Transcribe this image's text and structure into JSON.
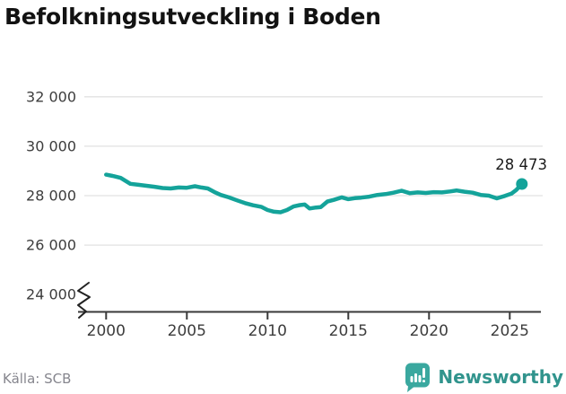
{
  "header": {
    "title": "Befolkningsutveckling i Boden"
  },
  "footer": {
    "source": "Källa: SCB",
    "brand": "Newsworthy"
  },
  "colors": {
    "line": "#14a39a",
    "logo_bubble": "#3aa89f",
    "logo_glyph": "#ffffff",
    "brand_text": "#31948d",
    "grid": "#e2e2e2",
    "axis": "#3a3a3a",
    "tick_label": "#3d3d3d",
    "title_text": "#121212",
    "end_label": "#1b1b1b",
    "source_text": "#86868e"
  },
  "chart_data": {
    "type": "line",
    "title": "Befolkningsutveckling i Boden",
    "xlabel": "",
    "ylabel": "",
    "grid": true,
    "legend_position": "none",
    "xlim": [
      1999.6,
      2027
    ],
    "ylim": [
      23600,
      32400
    ],
    "axis_break_at_bottom": true,
    "x_ticks": [
      2000,
      2005,
      2010,
      2015,
      2020,
      2025
    ],
    "y_ticks": [
      {
        "value": 32000,
        "label": "32 000",
        "gridline": true
      },
      {
        "value": 30000,
        "label": "30 000",
        "gridline": true
      },
      {
        "value": 28000,
        "label": "28 000",
        "gridline": true
      },
      {
        "value": 26000,
        "label": "26 000",
        "gridline": true
      },
      {
        "value": 24000,
        "label": "24 000",
        "gridline": false
      }
    ],
    "end_label": "28 473",
    "end_point": [
      2025.75,
      28473
    ],
    "series": [
      {
        "color": "#14a39a",
        "points": [
          [
            2000.0,
            28850
          ],
          [
            2000.4,
            28800
          ],
          [
            2000.9,
            28720
          ],
          [
            2001.5,
            28480
          ],
          [
            2002.0,
            28440
          ],
          [
            2002.5,
            28400
          ],
          [
            2003.0,
            28360
          ],
          [
            2003.5,
            28310
          ],
          [
            2004.0,
            28290
          ],
          [
            2004.5,
            28330
          ],
          [
            2005.0,
            28320
          ],
          [
            2005.5,
            28380
          ],
          [
            2005.9,
            28330
          ],
          [
            2006.3,
            28290
          ],
          [
            2006.7,
            28150
          ],
          [
            2007.1,
            28030
          ],
          [
            2007.6,
            27930
          ],
          [
            2008.1,
            27810
          ],
          [
            2008.6,
            27700
          ],
          [
            2009.1,
            27610
          ],
          [
            2009.6,
            27550
          ],
          [
            2010.0,
            27420
          ],
          [
            2010.4,
            27350
          ],
          [
            2010.8,
            27330
          ],
          [
            2011.2,
            27420
          ],
          [
            2011.6,
            27560
          ],
          [
            2012.0,
            27620
          ],
          [
            2012.3,
            27640
          ],
          [
            2012.6,
            27480
          ],
          [
            2013.0,
            27520
          ],
          [
            2013.3,
            27540
          ],
          [
            2013.7,
            27760
          ],
          [
            2014.1,
            27830
          ],
          [
            2014.6,
            27930
          ],
          [
            2015.0,
            27860
          ],
          [
            2015.4,
            27900
          ],
          [
            2015.8,
            27920
          ],
          [
            2016.3,
            27960
          ],
          [
            2016.8,
            28030
          ],
          [
            2017.3,
            28060
          ],
          [
            2017.8,
            28120
          ],
          [
            2018.3,
            28200
          ],
          [
            2018.8,
            28100
          ],
          [
            2019.3,
            28130
          ],
          [
            2019.8,
            28110
          ],
          [
            2020.3,
            28140
          ],
          [
            2020.8,
            28130
          ],
          [
            2021.3,
            28170
          ],
          [
            2021.7,
            28210
          ],
          [
            2022.2,
            28160
          ],
          [
            2022.7,
            28120
          ],
          [
            2023.2,
            28030
          ],
          [
            2023.7,
            28000
          ],
          [
            2024.2,
            27890
          ],
          [
            2024.7,
            27990
          ],
          [
            2025.1,
            28080
          ],
          [
            2025.4,
            28230
          ],
          [
            2025.75,
            28473
          ]
        ]
      }
    ]
  }
}
